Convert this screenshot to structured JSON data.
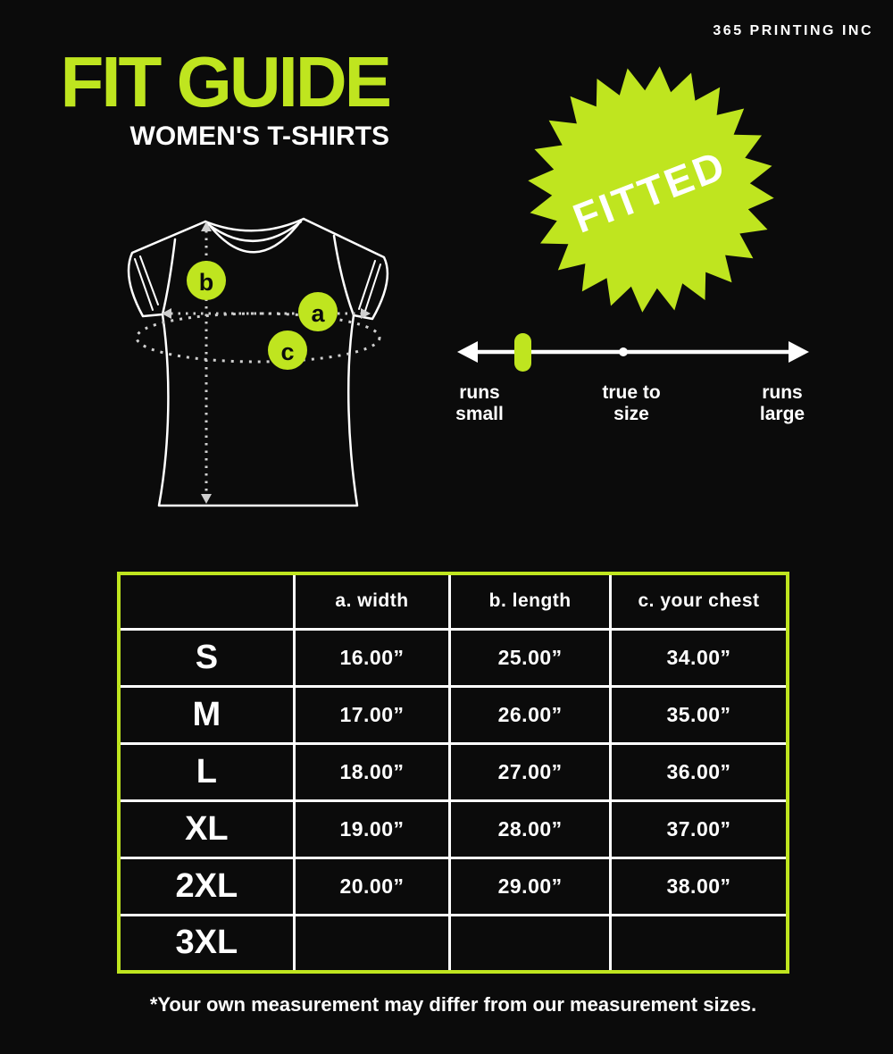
{
  "brand": "365 PRINTING INC",
  "header": {
    "title": "FIT GUIDE",
    "subtitle": "WOMEN'S T-SHIRTS"
  },
  "badge": {
    "label": "FITTED"
  },
  "diagram": {
    "markers": {
      "a": "a",
      "b": "b",
      "c": "c"
    }
  },
  "fit_scale": {
    "left_label": "runs\nsmall",
    "center_label": "true to\nsize",
    "right_label": "runs\nlarge",
    "indicator_position": "runs small"
  },
  "size_table": {
    "headers": [
      "",
      "a. width",
      "b. length",
      "c. your chest"
    ],
    "rows": [
      {
        "size": "S",
        "width": "16.00”",
        "length": "25.00”",
        "chest": "34.00”"
      },
      {
        "size": "M",
        "width": "17.00”",
        "length": "26.00”",
        "chest": "35.00”"
      },
      {
        "size": "L",
        "width": "18.00”",
        "length": "27.00”",
        "chest": "36.00”"
      },
      {
        "size": "XL",
        "width": "19.00”",
        "length": "28.00”",
        "chest": "37.00”"
      },
      {
        "size": "2XL",
        "width": "20.00”",
        "length": "29.00”",
        "chest": "38.00”"
      },
      {
        "size": "3XL",
        "width": "",
        "length": "",
        "chest": ""
      }
    ]
  },
  "footnote": "*Your own measurement may differ from our measurement sizes.",
  "colors": {
    "accent": "#bfe51f",
    "background": "#0b0b0b",
    "text": "#ffffff"
  }
}
